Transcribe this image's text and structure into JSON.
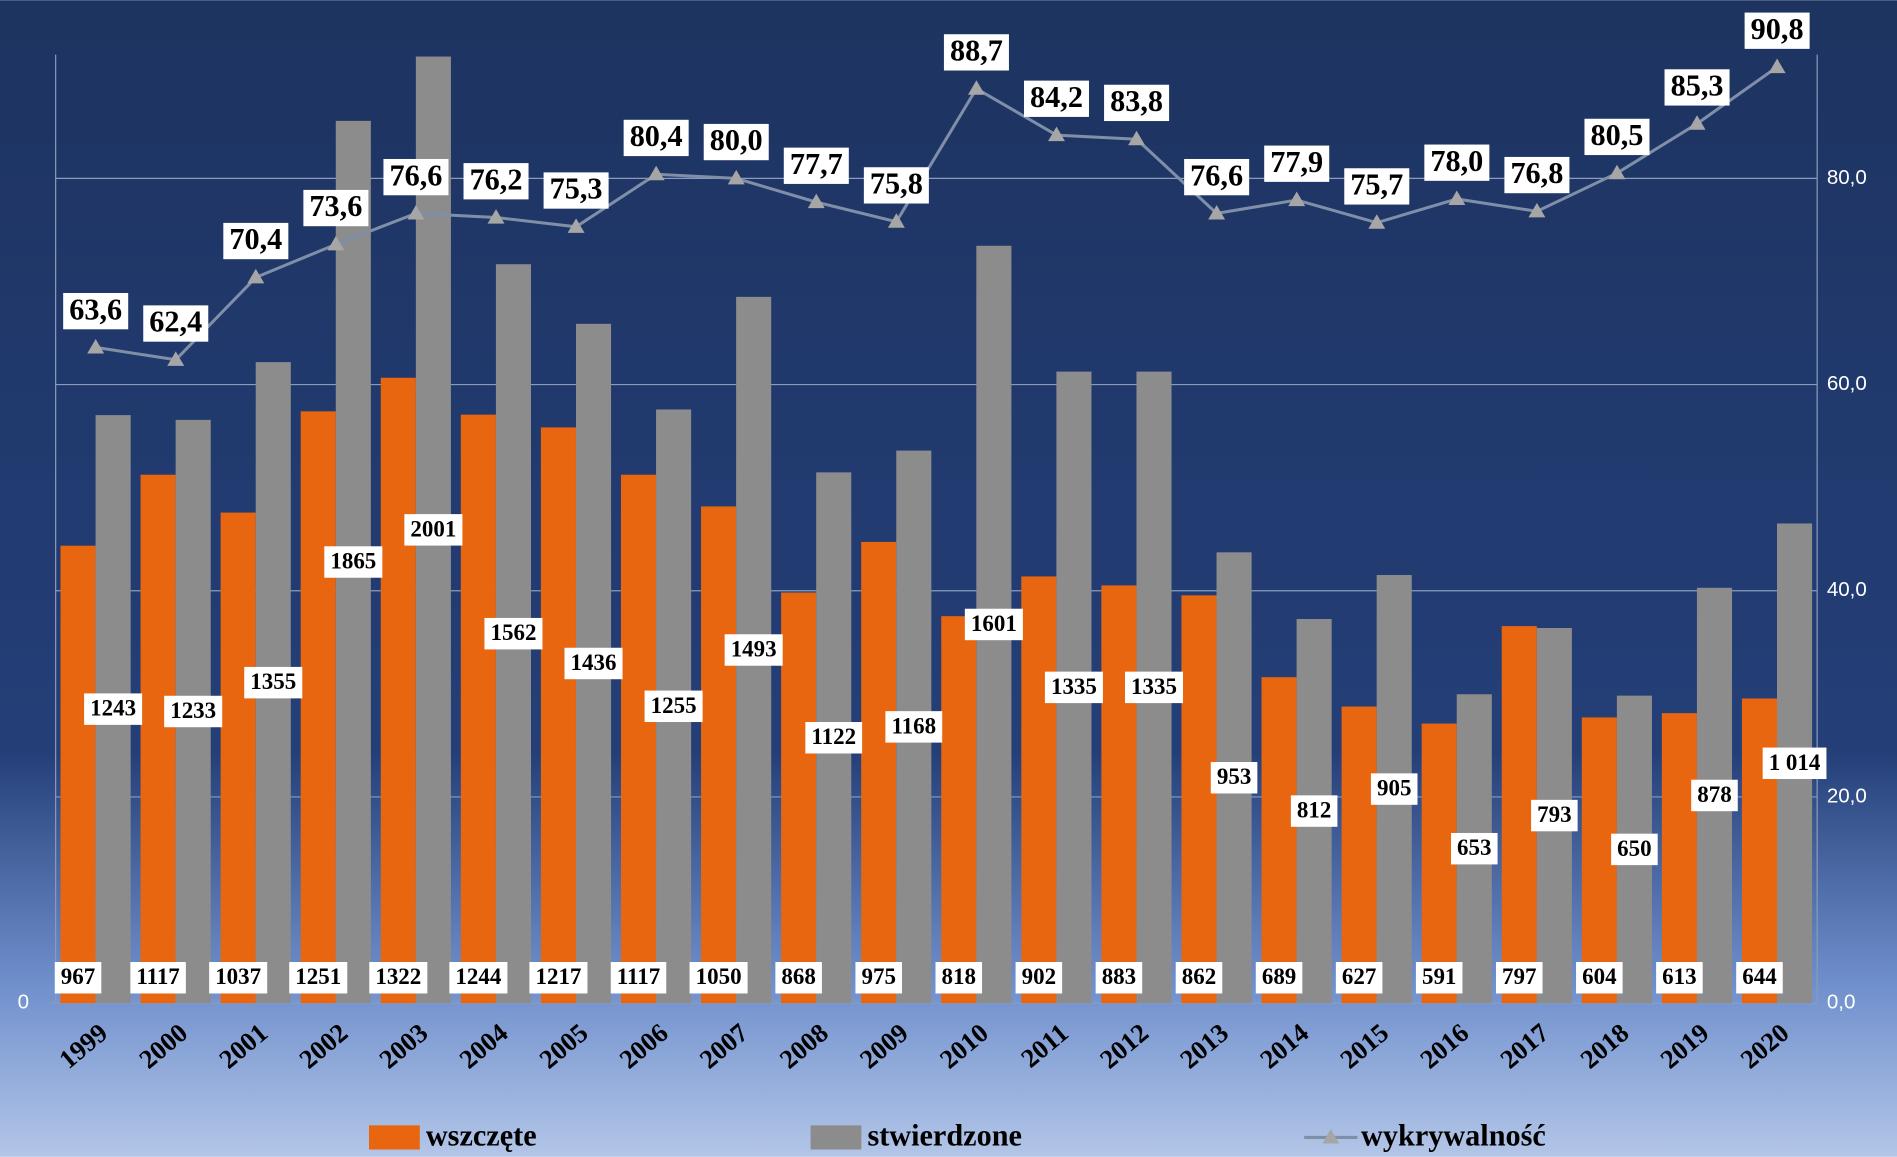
{
  "chart_data": {
    "type": "bar-line",
    "categories": [
      "1999",
      "2000",
      "2001",
      "2002",
      "2003",
      "2004",
      "2005",
      "2006",
      "2007",
      "2008",
      "2009",
      "2010",
      "2011",
      "2012",
      "2013",
      "2014",
      "2015",
      "2016",
      "2017",
      "2018",
      "2019",
      "2020"
    ],
    "series": [
      {
        "name": "wszczęte",
        "color": "#e8660f",
        "values": [
          967,
          1117,
          1037,
          1251,
          1322,
          1244,
          1217,
          1117,
          1050,
          868,
          975,
          818,
          902,
          883,
          862,
          689,
          627,
          591,
          797,
          604,
          613,
          644
        ]
      },
      {
        "name": "stwierdzone",
        "color": "#8c8c8c",
        "values": [
          1243,
          1233,
          1355,
          1865,
          2001,
          1562,
          1436,
          1255,
          1493,
          1122,
          1168,
          1601,
          1335,
          1335,
          953,
          812,
          905,
          653,
          793,
          650,
          878,
          1014
        ],
        "value_labels": [
          "1243",
          "1233",
          "1355",
          "1865",
          "2001",
          "1562",
          "1436",
          "1255",
          "1493",
          "1122",
          "1168",
          "1601",
          "1335",
          "1335",
          "953",
          "812",
          "905",
          "653",
          "793",
          "650",
          "878",
          "1 014"
        ]
      },
      {
        "name": "wykrywalność",
        "color": "#a6a6a6",
        "axis": "y2",
        "values": [
          63.6,
          62.4,
          70.4,
          73.6,
          76.6,
          76.2,
          75.3,
          80.4,
          80.0,
          77.7,
          75.8,
          88.7,
          84.2,
          83.8,
          76.6,
          77.9,
          75.7,
          78.0,
          76.8,
          80.5,
          85.3,
          90.8
        ],
        "value_labels": [
          "63,6",
          "62,4",
          "70,4",
          "73,6",
          "76,6",
          "76,2",
          "75,3",
          "80,4",
          "80,0",
          "77,7",
          "75,8",
          "88,7",
          "84,2",
          "83,8",
          "76,6",
          "77,9",
          "75,7",
          "78,0",
          "76,8",
          "80,5",
          "85,3",
          "90,8"
        ]
      }
    ],
    "ylim": [
      0,
      2005
    ],
    "yticks": [
      0
    ],
    "y2lim": [
      0,
      92
    ],
    "y2ticks": [
      {
        "value": 0,
        "label": "0,0"
      },
      {
        "value": 20,
        "label": "20,0"
      },
      {
        "value": 40,
        "label": "40,0"
      },
      {
        "value": 60,
        "label": "60,0"
      },
      {
        "value": 80,
        "label": "80,0"
      }
    ],
    "grid": true
  }
}
